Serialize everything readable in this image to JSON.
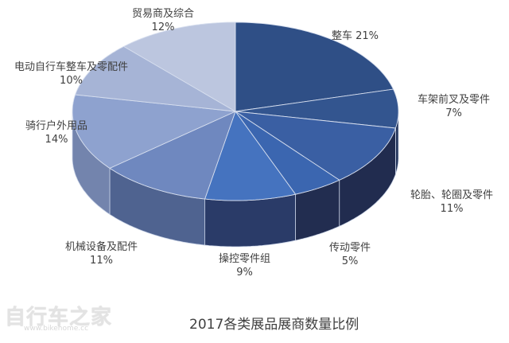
{
  "chart_data": {
    "type": "pie",
    "style": "3d-pie",
    "title": "2017各类展品展商数量比例",
    "categories": [
      "整车",
      "车架前叉及零件",
      "轮胎、轮圈及零件",
      "传动零件",
      "操控零件组",
      "机械设备及配件",
      "骑行户外用品",
      "电动自行车整车及零配件",
      "贸易商及综合"
    ],
    "values": [
      21,
      7,
      11,
      5,
      9,
      11,
      14,
      10,
      12
    ],
    "unit": "%",
    "colors": [
      "#2f4f86",
      "#33558f",
      "#3a5fa3",
      "#3b66b0",
      "#4573bf",
      "#6f88bf",
      "#8ea2cf",
      "#a6b4d6",
      "#bcc6df"
    ],
    "side_colors": [
      "#1e2f52",
      "#1f3158",
      "#212c4f",
      "#222d50",
      "#2a3b68",
      "#4f6390",
      "#7384ad",
      "#8795b8",
      "#a0aac6"
    ],
    "legend": "none (data labels on slices)"
  },
  "labels": [
    {
      "name": "整车 21%",
      "pct": ""
    },
    {
      "name": "车架前叉及零件",
      "pct": "7%"
    },
    {
      "name": "轮胎、轮圈及零件",
      "pct": "11%"
    },
    {
      "name": "传动零件",
      "pct": "5%"
    },
    {
      "name": "操控零件组",
      "pct": "9%"
    },
    {
      "name": "机械设备及配件",
      "pct": "11%"
    },
    {
      "name": "骑行户外用品",
      "pct": "14%"
    },
    {
      "name": "电动自行车整车及零配件",
      "pct": "10%"
    },
    {
      "name": "贸易商及综合",
      "pct": "12%"
    }
  ],
  "caption": "2017各类展品展商数量比例",
  "watermark": {
    "brand": "自行车之家",
    "url": "www.bikehome.cc"
  }
}
